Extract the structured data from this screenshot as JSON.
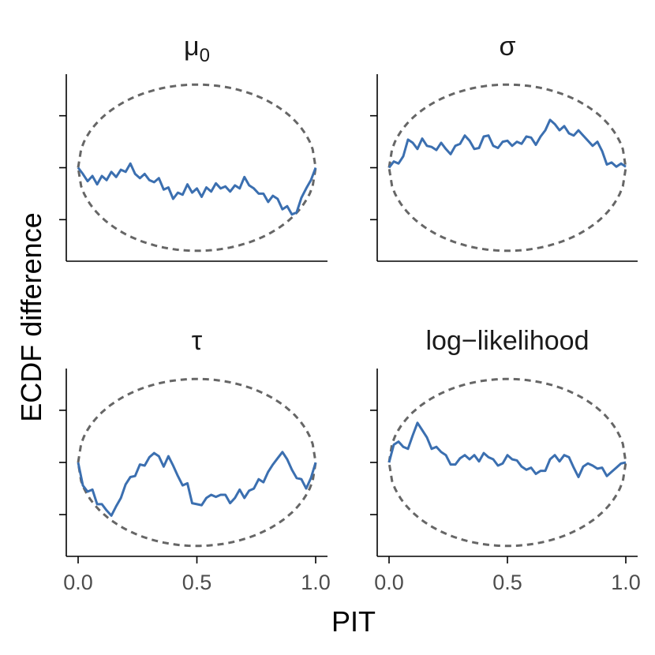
{
  "chart_data": {
    "type": "line",
    "ylabel": "ECDF difference",
    "xlabel": "PIT",
    "xlim": [
      0,
      1
    ],
    "ylim": [
      -0.09,
      0.09
    ],
    "x_ticks": [
      "0.0",
      "0.5",
      "1.0"
    ],
    "y_ticks_labeled": false,
    "grid": false,
    "legend": "none",
    "colors": {
      "ecdf_line": "#3b6fb0",
      "envelope": "#666666",
      "axis": "#000000"
    },
    "panels": [
      {
        "title": "μ₀",
        "title_base": "μ",
        "title_sub": "0",
        "envelope_half_width": 0.08,
        "x": [
          0,
          0.02,
          0.04,
          0.06,
          0.08,
          0.1,
          0.12,
          0.14,
          0.16,
          0.18,
          0.2,
          0.22,
          0.24,
          0.26,
          0.28,
          0.3,
          0.32,
          0.34,
          0.36,
          0.38,
          0.4,
          0.42,
          0.44,
          0.46,
          0.48,
          0.5,
          0.52,
          0.54,
          0.56,
          0.58,
          0.6,
          0.62,
          0.64,
          0.66,
          0.68,
          0.7,
          0.72,
          0.74,
          0.76,
          0.78,
          0.8,
          0.82,
          0.84,
          0.86,
          0.88,
          0.9,
          0.92,
          0.94,
          0.96,
          0.98,
          1.0
        ],
        "y": [
          0.0,
          -0.006,
          -0.013,
          -0.008,
          -0.016,
          -0.008,
          -0.012,
          -0.004,
          -0.009,
          -0.002,
          -0.004,
          0.004,
          -0.006,
          -0.01,
          -0.006,
          -0.012,
          -0.014,
          -0.01,
          -0.021,
          -0.019,
          -0.03,
          -0.024,
          -0.026,
          -0.016,
          -0.024,
          -0.02,
          -0.028,
          -0.019,
          -0.023,
          -0.015,
          -0.02,
          -0.018,
          -0.023,
          -0.017,
          -0.02,
          -0.009,
          -0.017,
          -0.02,
          -0.025,
          -0.025,
          -0.033,
          -0.027,
          -0.03,
          -0.04,
          -0.037,
          -0.045,
          -0.043,
          -0.029,
          -0.02,
          -0.012,
          0.0
        ]
      },
      {
        "title": "σ",
        "envelope_half_width": 0.08,
        "x": [
          0,
          0.02,
          0.04,
          0.06,
          0.08,
          0.1,
          0.12,
          0.14,
          0.16,
          0.18,
          0.2,
          0.22,
          0.24,
          0.26,
          0.28,
          0.3,
          0.32,
          0.34,
          0.36,
          0.38,
          0.4,
          0.42,
          0.44,
          0.46,
          0.48,
          0.5,
          0.52,
          0.54,
          0.56,
          0.58,
          0.6,
          0.62,
          0.64,
          0.66,
          0.68,
          0.7,
          0.72,
          0.74,
          0.76,
          0.78,
          0.8,
          0.82,
          0.84,
          0.86,
          0.88,
          0.9,
          0.92,
          0.94,
          0.96,
          0.98,
          1.0
        ],
        "y": [
          0.0,
          0.006,
          0.004,
          0.011,
          0.027,
          0.024,
          0.018,
          0.028,
          0.021,
          0.02,
          0.017,
          0.024,
          0.018,
          0.013,
          0.021,
          0.023,
          0.031,
          0.026,
          0.018,
          0.019,
          0.03,
          0.031,
          0.021,
          0.019,
          0.025,
          0.026,
          0.021,
          0.025,
          0.023,
          0.03,
          0.029,
          0.022,
          0.03,
          0.036,
          0.046,
          0.042,
          0.036,
          0.04,
          0.033,
          0.031,
          0.036,
          0.031,
          0.026,
          0.021,
          0.025,
          0.016,
          0.003,
          0.005,
          0.001,
          0.004,
          0.001
        ]
      },
      {
        "title": "τ",
        "envelope_half_width": 0.08,
        "x": [
          0,
          0.02,
          0.04,
          0.06,
          0.08,
          0.1,
          0.12,
          0.14,
          0.16,
          0.18,
          0.2,
          0.22,
          0.24,
          0.26,
          0.28,
          0.3,
          0.32,
          0.34,
          0.36,
          0.38,
          0.4,
          0.42,
          0.44,
          0.46,
          0.48,
          0.5,
          0.52,
          0.54,
          0.56,
          0.58,
          0.6,
          0.62,
          0.64,
          0.66,
          0.68,
          0.7,
          0.72,
          0.74,
          0.76,
          0.78,
          0.8,
          0.82,
          0.84,
          0.86,
          0.88,
          0.9,
          0.92,
          0.94,
          0.96,
          0.98,
          1.0
        ],
        "y": [
          0.0,
          -0.022,
          -0.028,
          -0.026,
          -0.04,
          -0.04,
          -0.046,
          -0.051,
          -0.042,
          -0.034,
          -0.021,
          -0.014,
          -0.013,
          -0.002,
          -0.003,
          0.005,
          0.009,
          0.006,
          -0.004,
          0.006,
          -0.003,
          -0.013,
          -0.022,
          -0.02,
          -0.039,
          -0.04,
          -0.041,
          -0.034,
          -0.031,
          -0.033,
          -0.031,
          -0.031,
          -0.039,
          -0.034,
          -0.026,
          -0.034,
          -0.027,
          -0.025,
          -0.016,
          -0.019,
          -0.009,
          -0.002,
          0.004,
          0.01,
          0.003,
          -0.007,
          -0.015,
          -0.016,
          -0.025,
          -0.015,
          0.0
        ]
      },
      {
        "title": "log−likelihood",
        "envelope_half_width": 0.08,
        "x": [
          0,
          0.02,
          0.04,
          0.06,
          0.08,
          0.1,
          0.12,
          0.14,
          0.16,
          0.18,
          0.2,
          0.22,
          0.24,
          0.26,
          0.28,
          0.3,
          0.32,
          0.34,
          0.36,
          0.38,
          0.4,
          0.42,
          0.44,
          0.46,
          0.48,
          0.5,
          0.52,
          0.54,
          0.56,
          0.58,
          0.6,
          0.62,
          0.64,
          0.66,
          0.68,
          0.7,
          0.72,
          0.74,
          0.76,
          0.78,
          0.8,
          0.82,
          0.84,
          0.86,
          0.88,
          0.9,
          0.92,
          0.94,
          0.96,
          0.98,
          1.0
        ],
        "y": [
          0.0,
          0.017,
          0.02,
          0.015,
          0.013,
          0.026,
          0.038,
          0.031,
          0.024,
          0.013,
          0.015,
          0.01,
          0.007,
          -0.002,
          -0.002,
          0.004,
          0.007,
          0.003,
          0.007,
          0.001,
          0.009,
          0.005,
          0.003,
          -0.003,
          -0.001,
          0.007,
          0.003,
          0.002,
          -0.004,
          -0.007,
          -0.005,
          -0.011,
          -0.008,
          -0.008,
          0.003,
          0.007,
          0.001,
          0.007,
          0.005,
          -0.005,
          -0.014,
          -0.004,
          -0.001,
          -0.003,
          -0.006,
          -0.005,
          -0.013,
          -0.009,
          -0.005,
          -0.001,
          0.0
        ]
      }
    ]
  }
}
